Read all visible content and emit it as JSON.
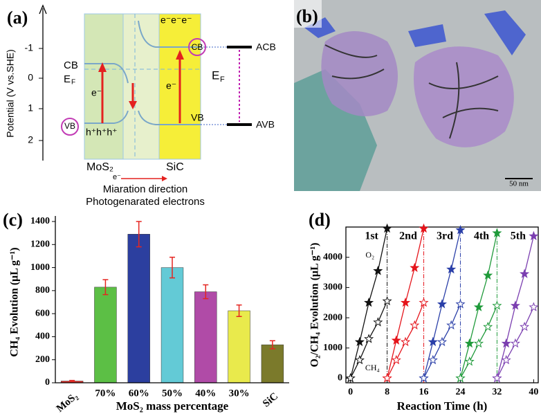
{
  "panel_a": {
    "label": "(a)",
    "axis_label": "Potential  (V vs.SHE)",
    "ticks": [
      "-1",
      "0",
      "1",
      "2"
    ],
    "left_cb": "CB",
    "left_ef": {
      "base": "E",
      "sub": "F"
    },
    "left_vb": "VB",
    "holes": "h⁺h⁺h⁺",
    "e_left": "e⁻",
    "e_mid": "e⁻",
    "electrons": "e⁻e⁻e⁻",
    "right_cb": "CB",
    "right_vb": "VB",
    "right_ef": {
      "base": "E",
      "sub": "F"
    },
    "e_right": "e⁻",
    "mos2": "MoS₂",
    "sic": "SiC",
    "acb": "ACB",
    "avb": "AVB",
    "direction_1": "Miaration direction",
    "direction_2": "Photogenarated electrons"
  },
  "panel_b": {
    "label": "(b)",
    "scale_bar": "50 nm"
  },
  "chart_data": [
    {
      "type": "bar",
      "panel_label": "(c)",
      "y_label": "CH₄ Evolution (μL g⁻¹)",
      "x_label": "MoS₂ mass percentage",
      "categories": [
        "MoS₂",
        "70%",
        "60%",
        "50%",
        "40%",
        "30%",
        "SiC"
      ],
      "values": [
        15,
        830,
        1290,
        1000,
        790,
        625,
        330
      ],
      "errors": [
        5,
        65,
        110,
        90,
        60,
        50,
        35
      ],
      "colors": [
        "#e0302a",
        "#5cbf45",
        "#2c3f9f",
        "#63cad6",
        "#b04ba7",
        "#e9ea4c",
        "#7b7a2b"
      ],
      "error_color": "#e52520",
      "ylim": [
        0,
        1400
      ],
      "yticks": [
        0,
        200,
        400,
        600,
        800,
        1000,
        1200,
        1400
      ]
    },
    {
      "type": "line",
      "panel_label": "(d)",
      "y_label": "O₂/CH₄ Evolution (μL g⁻¹)",
      "x_label": "Reaction Time (h)",
      "xlim": [
        -1,
        41
      ],
      "xticks": [
        0,
        8,
        16,
        24,
        32,
        40
      ],
      "ylim": [
        -150,
        5000
      ],
      "yticks": [
        0,
        1000,
        2000,
        3000,
        4000
      ],
      "run_labels": [
        "1st",
        "2nd",
        "3rd",
        "4th",
        "5th"
      ],
      "annotations": [
        "O₂",
        "CH₄"
      ],
      "series": [
        {
          "color": "#111111",
          "marker": "filled",
          "x": [
            0,
            2,
            4,
            6,
            8
          ],
          "values": [
            0,
            1200,
            2500,
            3550,
            4950
          ]
        },
        {
          "color": "#111111",
          "marker": "open",
          "x": [
            0,
            2,
            4,
            6,
            8
          ],
          "values": [
            0,
            600,
            1300,
            1850,
            2550
          ]
        },
        {
          "color": "#e5141b",
          "marker": "filled",
          "x": [
            8,
            10,
            12,
            14,
            16
          ],
          "values": [
            0,
            1250,
            2500,
            3650,
            4950
          ]
        },
        {
          "color": "#e5141b",
          "marker": "open",
          "x": [
            8,
            10,
            12,
            14,
            16
          ],
          "values": [
            0,
            600,
            1200,
            1750,
            2500
          ]
        },
        {
          "color": "#2a3fa8",
          "marker": "filled",
          "x": [
            16,
            18,
            20,
            22,
            24
          ],
          "values": [
            0,
            1200,
            2450,
            3600,
            4900
          ]
        },
        {
          "color": "#2a3fa8",
          "marker": "open",
          "x": [
            16,
            18,
            20,
            22,
            24
          ],
          "values": [
            0,
            600,
            1200,
            1750,
            2450
          ]
        },
        {
          "color": "#1f9a3a",
          "marker": "filled",
          "x": [
            24,
            26,
            28,
            30,
            32
          ],
          "values": [
            0,
            1150,
            2350,
            3400,
            4800
          ]
        },
        {
          "color": "#1f9a3a",
          "marker": "open",
          "x": [
            24,
            26,
            28,
            30,
            32
          ],
          "values": [
            0,
            550,
            1150,
            1700,
            2400
          ]
        },
        {
          "color": "#7b3fb0",
          "marker": "filled",
          "x": [
            32,
            34,
            36,
            38,
            40
          ],
          "values": [
            0,
            1150,
            2400,
            3450,
            4700
          ]
        },
        {
          "color": "#7b3fb0",
          "marker": "open",
          "x": [
            32,
            34,
            36,
            38,
            40
          ],
          "values": [
            0,
            600,
            1150,
            1700,
            2350
          ]
        }
      ]
    }
  ]
}
